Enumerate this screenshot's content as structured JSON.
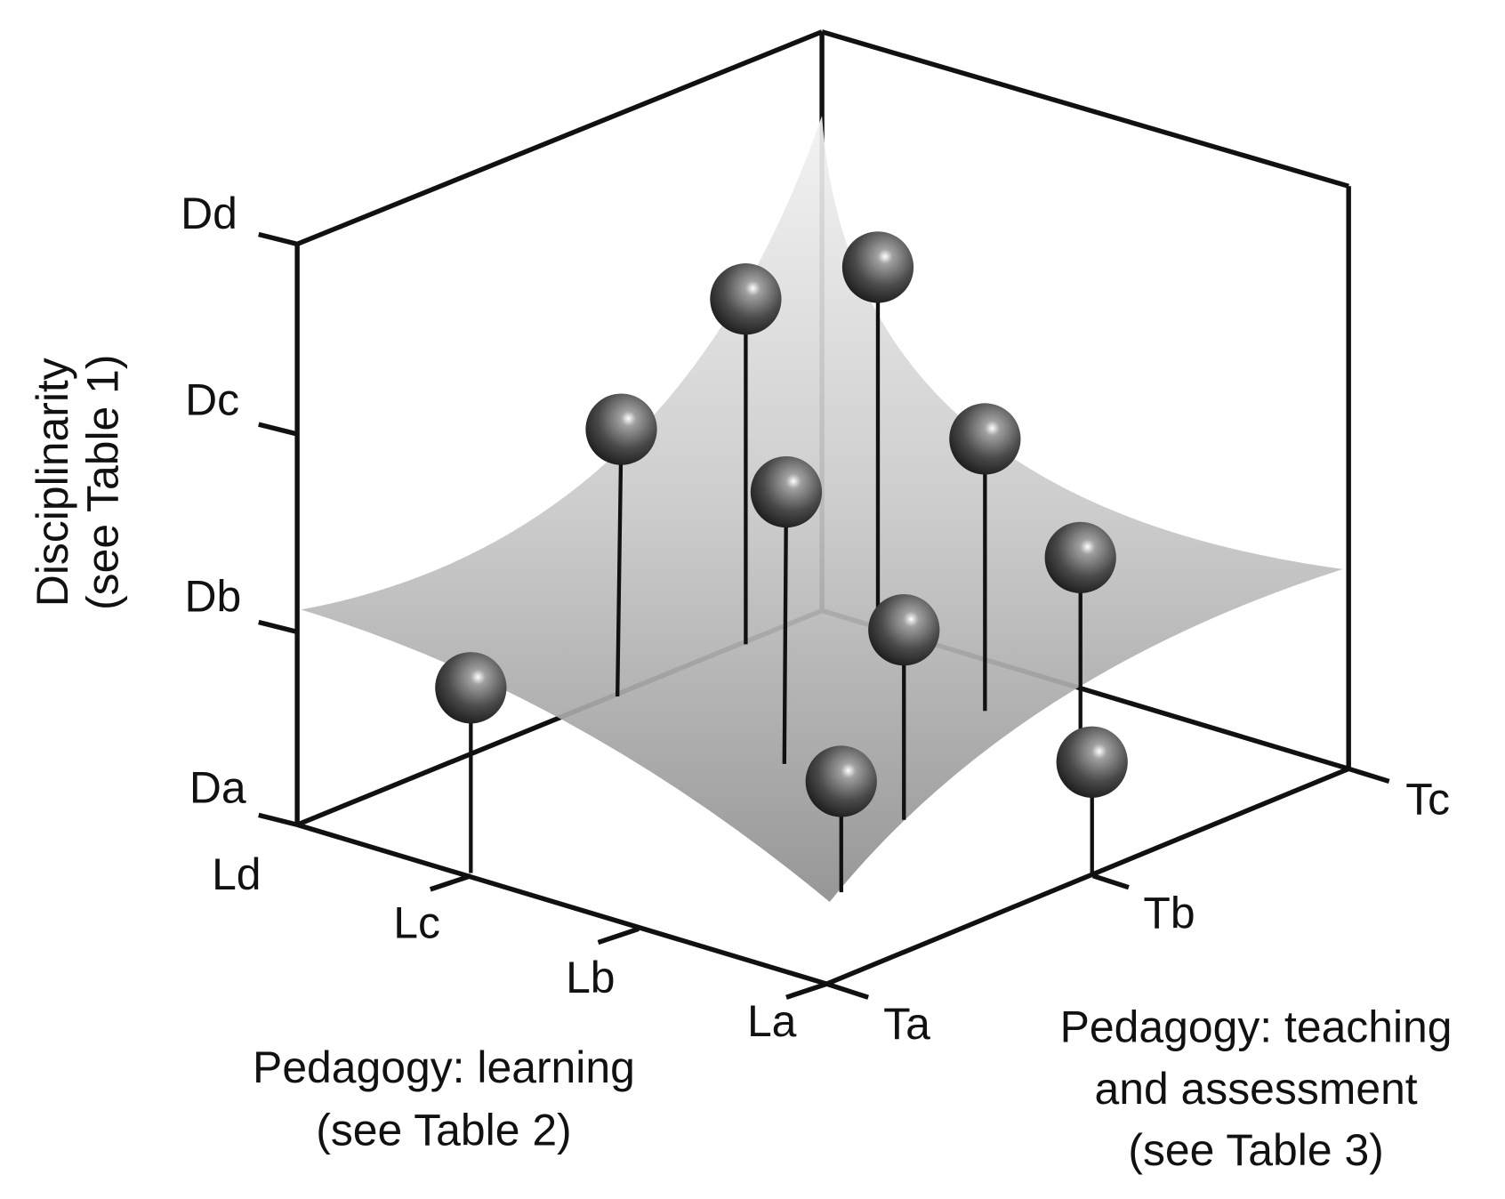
{
  "axes": {
    "disciplinarity": {
      "title": [
        "Disciplinarity",
        "(see Table 1)"
      ],
      "ticks": [
        "Da",
        "Db",
        "Dc",
        "Dd"
      ]
    },
    "learning": {
      "title": [
        "Pedagogy: learning",
        "(see Table 2)"
      ],
      "ticks": [
        "La",
        "Lb",
        "Lc",
        "Ld"
      ]
    },
    "teaching": {
      "title": [
        "Pedagogy: teaching",
        "and assessment",
        "(see Table 3)"
      ],
      "ticks": [
        "Ta",
        "Tb",
        "Tc"
      ]
    }
  }
}
